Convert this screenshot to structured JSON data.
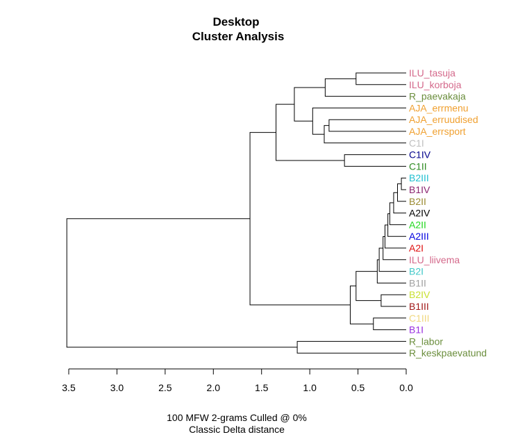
{
  "chart_data": {
    "type": "dendrogram",
    "title": "Desktop",
    "subtitle": "Cluster Analysis",
    "xlabel": "100 MFW 2-grams Culled @ 0%",
    "xlabel2": "Classic Delta distance",
    "xlim": [
      3.5,
      0.0
    ],
    "ticks": [
      "3.5",
      "3.0",
      "2.5",
      "2.0",
      "1.5",
      "1.0",
      "0.5",
      "0.0"
    ],
    "leaves": [
      {
        "label": "ILU_tasuja",
        "color": "#d4698b"
      },
      {
        "label": "ILU_korboja",
        "color": "#d4698b"
      },
      {
        "label": "R_paevakaja",
        "color": "#6b8e3d"
      },
      {
        "label": "AJA_errmenu",
        "color": "#f0a030"
      },
      {
        "label": "AJA_erruudised",
        "color": "#f0a030"
      },
      {
        "label": "AJA_errsport",
        "color": "#f0a030"
      },
      {
        "label": "C1I",
        "color": "#c0c0c0"
      },
      {
        "label": "C1IV",
        "color": "#00008b"
      },
      {
        "label": "C1II",
        "color": "#2e8b22"
      },
      {
        "label": "B2III",
        "color": "#1ebfd0"
      },
      {
        "label": "B1IV",
        "color": "#8b2470"
      },
      {
        "label": "B2II",
        "color": "#9a8a30"
      },
      {
        "label": "A2IV",
        "color": "#000000"
      },
      {
        "label": "A2II",
        "color": "#22d81e"
      },
      {
        "label": "A2III",
        "color": "#0000e0"
      },
      {
        "label": "A2I",
        "color": "#e01010"
      },
      {
        "label": "ILU_liivema",
        "color": "#d4698b"
      },
      {
        "label": "B2I",
        "color": "#40c8c8"
      },
      {
        "label": "B1II",
        "color": "#a0a0a0"
      },
      {
        "label": "B2IV",
        "color": "#c8e030"
      },
      {
        "label": "B1III",
        "color": "#a01818"
      },
      {
        "label": "C1III",
        "color": "#f0d880"
      },
      {
        "label": "B1I",
        "color": "#9a30e0"
      },
      {
        "label": "R_labor",
        "color": "#6b8e3d"
      },
      {
        "label": "R_keskpaevatund",
        "color": "#6b8e3d"
      }
    ],
    "merges": [
      {
        "id": "n1",
        "children": [
          "ILU_tasuja",
          "ILU_korboja"
        ],
        "height": 0.52
      },
      {
        "id": "n2",
        "children": [
          "n1",
          "R_paevakaja"
        ],
        "height": 0.84
      },
      {
        "id": "n3",
        "children": [
          "AJA_erruudised",
          "AJA_errsport"
        ],
        "height": 0.8
      },
      {
        "id": "n4",
        "children": [
          "n3",
          "C1I"
        ],
        "height": 0.85
      },
      {
        "id": "n5",
        "children": [
          "AJA_errmenu",
          "n4"
        ],
        "height": 0.97
      },
      {
        "id": "n6",
        "children": [
          "n2",
          "n5"
        ],
        "height": 1.16
      },
      {
        "id": "n7",
        "children": [
          "C1IV",
          "C1II"
        ],
        "height": 0.64
      },
      {
        "id": "n8",
        "children": [
          "n6",
          "n7"
        ],
        "height": 1.35
      },
      {
        "id": "n9",
        "children": [
          "B2III",
          "B1IV"
        ],
        "height": 0.05
      },
      {
        "id": "n10",
        "children": [
          "n9",
          "B2II"
        ],
        "height": 0.09
      },
      {
        "id": "n11",
        "children": [
          "n10",
          "A2IV"
        ],
        "height": 0.13
      },
      {
        "id": "n12",
        "children": [
          "n11",
          "A2II"
        ],
        "height": 0.17
      },
      {
        "id": "n13",
        "children": [
          "n12",
          "A2III"
        ],
        "height": 0.19
      },
      {
        "id": "n14",
        "children": [
          "n13",
          "A2I"
        ],
        "height": 0.22
      },
      {
        "id": "n15",
        "children": [
          "n14",
          "ILU_liivema"
        ],
        "height": 0.24
      },
      {
        "id": "n16",
        "children": [
          "n15",
          "B2I"
        ],
        "height": 0.28
      },
      {
        "id": "n17",
        "children": [
          "n16",
          "B1II"
        ],
        "height": 0.3
      },
      {
        "id": "n18",
        "children": [
          "B2IV",
          "B1III"
        ],
        "height": 0.26
      },
      {
        "id": "n19",
        "children": [
          "n17",
          "n18"
        ],
        "height": 0.52
      },
      {
        "id": "n20",
        "children": [
          "C1III",
          "B1I"
        ],
        "height": 0.34
      },
      {
        "id": "n21",
        "children": [
          "n19",
          "n20"
        ],
        "height": 0.58
      },
      {
        "id": "n22",
        "children": [
          "n8",
          "n21"
        ],
        "height": 1.62
      },
      {
        "id": "n23",
        "children": [
          "R_labor",
          "R_keskpaevatund"
        ],
        "height": 1.13
      },
      {
        "id": "n24",
        "children": [
          "n22",
          "n23"
        ],
        "height": 3.52
      }
    ]
  }
}
